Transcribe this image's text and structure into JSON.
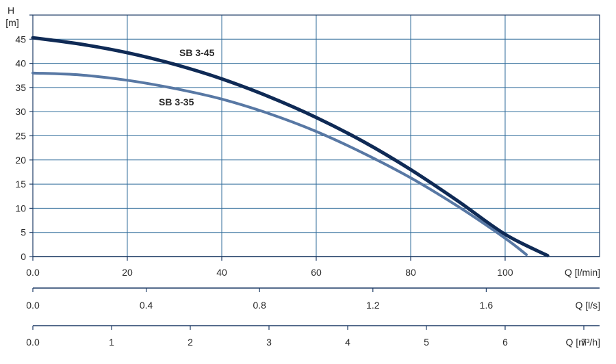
{
  "chart_data": {
    "type": "line",
    "y_axis": {
      "label": "H",
      "unit": "[m]",
      "ticks": [
        "0",
        "5",
        "10",
        "15",
        "20",
        "25",
        "30",
        "35",
        "40",
        "45"
      ],
      "range": [
        0,
        50
      ]
    },
    "x_axes": [
      {
        "unit": "Q [l/min]",
        "ticks": [
          "0.0",
          "20",
          "40",
          "60",
          "80",
          "100"
        ],
        "tick_values": [
          0,
          20,
          40,
          60,
          80,
          100
        ],
        "range": [
          0,
          120
        ]
      },
      {
        "unit": "Q [l/s]",
        "ticks": [
          "0.0",
          "0.4",
          "0.8",
          "1.2",
          "1.6"
        ],
        "tick_values": [
          0,
          0.4,
          0.8,
          1.2,
          1.6
        ],
        "range": [
          0,
          2.0
        ]
      },
      {
        "unit": "Q [m³/h]",
        "ticks": [
          "0.0",
          "1",
          "2",
          "3",
          "4",
          "5",
          "6",
          "7"
        ],
        "tick_values": [
          0,
          1,
          2,
          3,
          4,
          5,
          6,
          7
        ],
        "range": [
          0,
          7.2
        ]
      }
    ],
    "grid": true,
    "series": [
      {
        "name": "SB 3-45",
        "color": "#0f2a55",
        "points": [
          [
            0,
            45.3
          ],
          [
            10,
            44.0
          ],
          [
            20,
            42.2
          ],
          [
            30,
            39.8
          ],
          [
            40,
            36.8
          ],
          [
            50,
            33.1
          ],
          [
            60,
            28.8
          ],
          [
            70,
            23.8
          ],
          [
            80,
            18.0
          ],
          [
            90,
            11.5
          ],
          [
            100,
            4.6
          ],
          [
            109,
            0.2
          ]
        ]
      },
      {
        "name": "SB 3-35",
        "color": "#5878a4",
        "points": [
          [
            0,
            38.0
          ],
          [
            10,
            37.6
          ],
          [
            20,
            36.5
          ],
          [
            30,
            34.8
          ],
          [
            40,
            32.6
          ],
          [
            50,
            29.6
          ],
          [
            60,
            25.9
          ],
          [
            70,
            21.4
          ],
          [
            80,
            16.3
          ],
          [
            90,
            10.4
          ],
          [
            100,
            3.8
          ],
          [
            104.5,
            0.4
          ]
        ]
      }
    ]
  }
}
